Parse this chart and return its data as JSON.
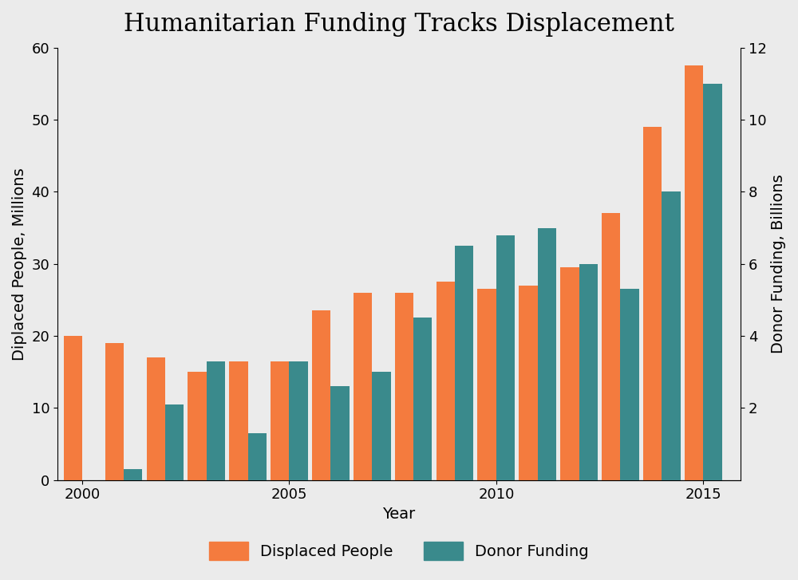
{
  "title": "Humanitarian Funding Tracks Displacement",
  "years": [
    2000,
    2001,
    2002,
    2003,
    2004,
    2005,
    2006,
    2007,
    2008,
    2009,
    2010,
    2011,
    2012,
    2013,
    2014,
    2015
  ],
  "displaced_people": [
    20.0,
    19.0,
    17.0,
    15.0,
    16.5,
    16.5,
    23.5,
    26.0,
    26.0,
    27.5,
    26.5,
    27.0,
    29.5,
    37.0,
    49.0,
    57.5
  ],
  "donor_funding": [
    0.0,
    0.3,
    2.1,
    3.3,
    1.3,
    3.3,
    2.6,
    3.0,
    4.5,
    6.5,
    6.8,
    7.0,
    6.0,
    5.3,
    8.0,
    11.0
  ],
  "displaced_color": "#F47B3E",
  "donor_color": "#3A8A8C",
  "background_color": "#EBEBEB",
  "ylabel_left": "Diplaced People, Millions",
  "ylabel_right": "Donor Funding, Billions",
  "xlabel": "Year",
  "ylim_left": [
    0,
    60
  ],
  "ylim_right": [
    0,
    12
  ],
  "yticks_left": [
    0,
    10,
    20,
    30,
    40,
    50,
    60
  ],
  "yticks_right": [
    2,
    4,
    6,
    8,
    10,
    12
  ],
  "xticks": [
    2000,
    2005,
    2010,
    2015
  ],
  "legend_labels": [
    "Displaced People",
    "Donor Funding"
  ],
  "title_fontsize": 22,
  "label_fontsize": 14,
  "tick_fontsize": 13,
  "legend_fontsize": 14,
  "bar_width": 0.45
}
